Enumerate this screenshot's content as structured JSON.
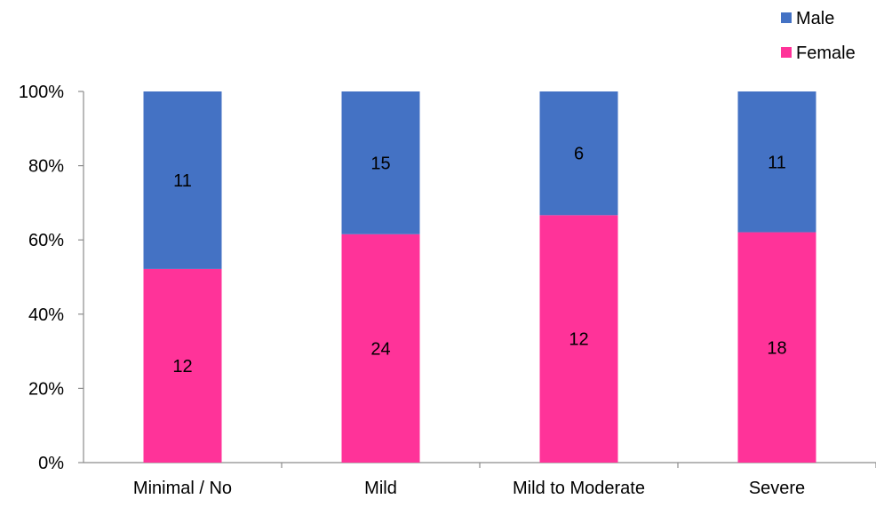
{
  "chart_data": {
    "type": "bar",
    "stacked": true,
    "normalized": true,
    "categories": [
      "Minimal / No",
      "Mild",
      "Mild to Moderate",
      "Severe"
    ],
    "series": [
      {
        "name": "Female",
        "values": [
          12,
          24,
          12,
          18
        ],
        "color": "#ff3399"
      },
      {
        "name": "Male",
        "values": [
          11,
          15,
          6,
          11
        ],
        "color": "#4472c4"
      }
    ],
    "yticks": [
      "0%",
      "20%",
      "40%",
      "60%",
      "80%",
      "100%"
    ],
    "ylim": [
      0,
      100
    ],
    "grid": false,
    "legend": {
      "position": "top-right",
      "order": [
        "Male",
        "Female"
      ]
    }
  }
}
